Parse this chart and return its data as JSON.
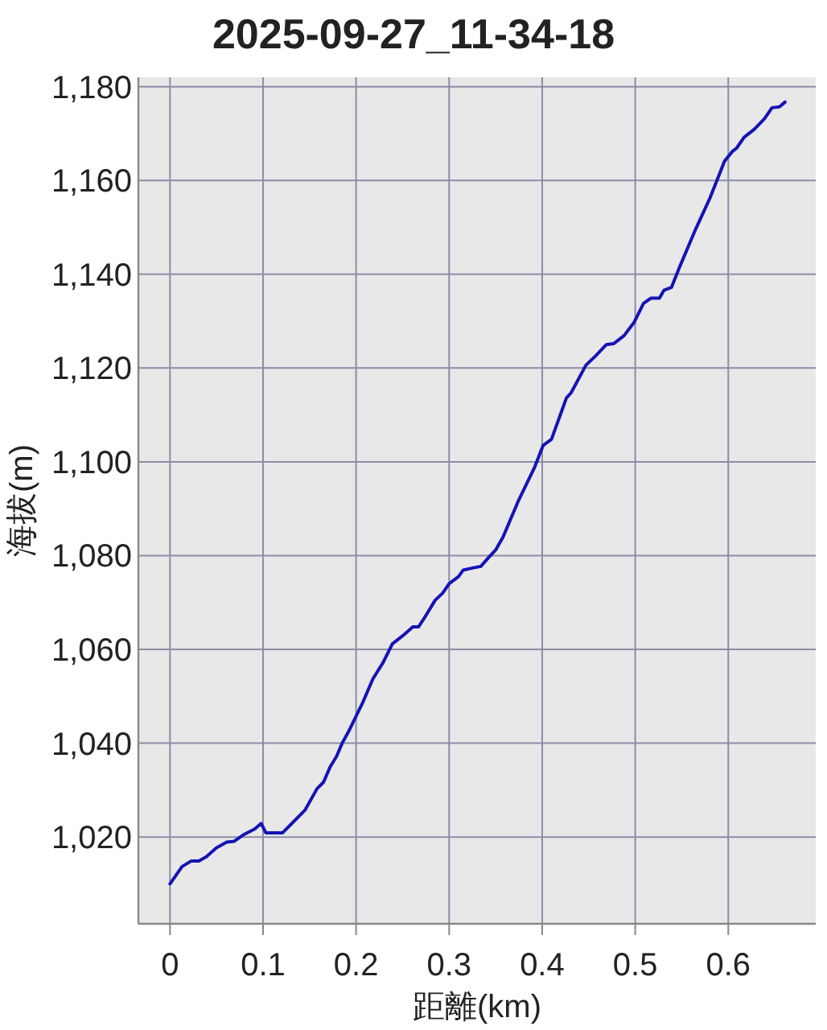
{
  "chart_data": {
    "type": "line",
    "title": "2025-09-27_11-34-18",
    "xlabel": "距離(km)",
    "ylabel": "海拔(m)",
    "x": [
      0,
      0.013,
      0.023,
      0.031,
      0.039,
      0.05,
      0.061,
      0.069,
      0.08,
      0.091,
      0.098,
      0.103,
      0.121,
      0.131,
      0.145,
      0.158,
      0.165,
      0.172,
      0.179,
      0.185,
      0.193,
      0.207,
      0.218,
      0.229,
      0.239,
      0.25,
      0.261,
      0.267,
      0.274,
      0.285,
      0.293,
      0.3,
      0.31,
      0.315,
      0.326,
      0.334,
      0.342,
      0.35,
      0.358,
      0.374,
      0.392,
      0.401,
      0.41,
      0.426,
      0.431,
      0.447,
      0.458,
      0.469,
      0.477,
      0.488,
      0.499,
      0.509,
      0.517,
      0.526,
      0.531,
      0.539,
      0.547,
      0.564,
      0.58,
      0.596,
      0.604,
      0.609,
      0.617,
      0.628,
      0.639,
      0.647,
      0.655,
      0.661
    ],
    "series": [
      {
        "color": "#1414b4",
        "values": [
          1010,
          1013.7,
          1014.9,
          1014.9,
          1015.8,
          1017.7,
          1018.9,
          1019.1,
          1020.6,
          1021.7,
          1022.9,
          1020.9,
          1020.9,
          1022.9,
          1025.7,
          1030.3,
          1031.7,
          1034.9,
          1037.2,
          1040,
          1042.9,
          1048.6,
          1053.7,
          1057.2,
          1061.2,
          1062.9,
          1064.8,
          1064.8,
          1066.9,
          1070.5,
          1072,
          1074,
          1075.5,
          1076.9,
          1077.4,
          1077.7,
          1079.5,
          1081.2,
          1084,
          1091.5,
          1098.9,
          1103.5,
          1104.8,
          1113.6,
          1114.7,
          1120.6,
          1122.7,
          1125,
          1125.2,
          1126.9,
          1129.8,
          1133.8,
          1134.9,
          1134.9,
          1136.6,
          1137.2,
          1141.2,
          1149.2,
          1156.1,
          1164.1,
          1166.1,
          1166.9,
          1169.2,
          1170.9,
          1173.2,
          1175.5,
          1175.7,
          1176.7
        ]
      }
    ],
    "xlim": [
      -0.034,
      0.694
    ],
    "ylim": [
      1001.5,
      1182
    ],
    "xticks": [
      0,
      0.1,
      0.2,
      0.3,
      0.4,
      0.5,
      0.6
    ],
    "yticks": [
      {
        "value": 1020,
        "label": "1,020"
      },
      {
        "value": 1040,
        "label": "1,040"
      },
      {
        "value": 1060,
        "label": "1,060"
      },
      {
        "value": 1080,
        "label": "1,080"
      },
      {
        "value": 1100,
        "label": "1,100"
      },
      {
        "value": 1120,
        "label": "1,120"
      },
      {
        "value": 1140,
        "label": "1,140"
      },
      {
        "value": 1160,
        "label": "1,160"
      },
      {
        "value": 1180,
        "label": "1,180"
      }
    ],
    "grid": true,
    "line_style": "solid"
  }
}
